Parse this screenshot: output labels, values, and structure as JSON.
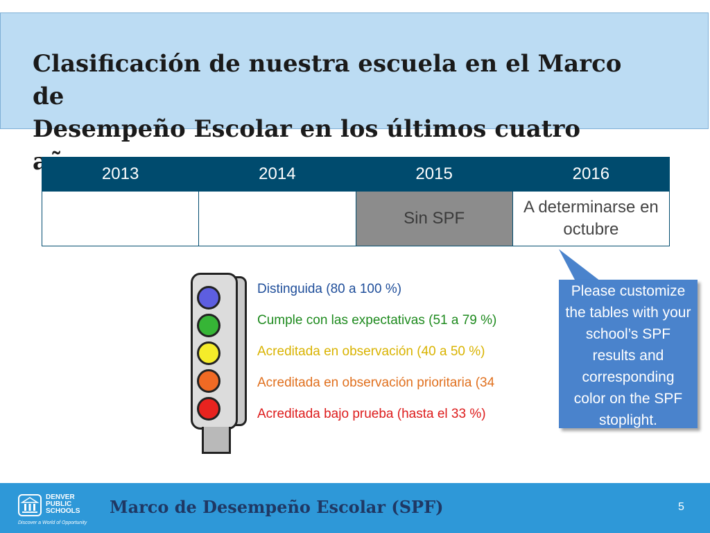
{
  "slide": {
    "title_line1": "Clasificación de nuestra escuela en el Marco de",
    "title_line2": "Desempeño Escolar en los últimos cuatro años:",
    "page_number": "5"
  },
  "table": {
    "headers": [
      "2013",
      "2014",
      "2015",
      "2016"
    ],
    "row": [
      "",
      "",
      "Sin SPF",
      "A determinarse en octubre"
    ]
  },
  "legend": [
    {
      "label": "Distinguida (80 a 100 %)",
      "color": "#1f4e9a",
      "bulb": "#5d5ee0"
    },
    {
      "label": "Cumple con las expectativas (51 a 79 %)",
      "color": "#1e8a1e",
      "bulb": "#36b536"
    },
    {
      "label": "Acreditada en observación (40 a 50 %)",
      "color": "#d9b300",
      "bulb": "#f5ec2a"
    },
    {
      "label": "Acreditada en observación prioritaria (34",
      "color": "#e0701e",
      "bulb": "#f06a24"
    },
    {
      "label": "Acreditada bajo prueba (hasta el 33 %)",
      "color": "#dd1c1c",
      "bulb": "#e8231f"
    }
  ],
  "callout": {
    "text": "Please customize the tables with your school’s SPF results and corresponding color on the SPF stoplight."
  },
  "footer": {
    "title": "Marco de Desempeño Escolar (SPF)",
    "logo_line1": "DENVER",
    "logo_line2": "PUBLIC",
    "logo_line3": "SCHOOLS",
    "logo_tagline": "Discover a World of Opportunity"
  },
  "colors": {
    "title_bg": "#bcdcf3",
    "table_header": "#004b6e",
    "grey_cell": "#8c8c8c",
    "callout_bg": "#4a83cc",
    "footer_bg": "#2e98d8"
  }
}
